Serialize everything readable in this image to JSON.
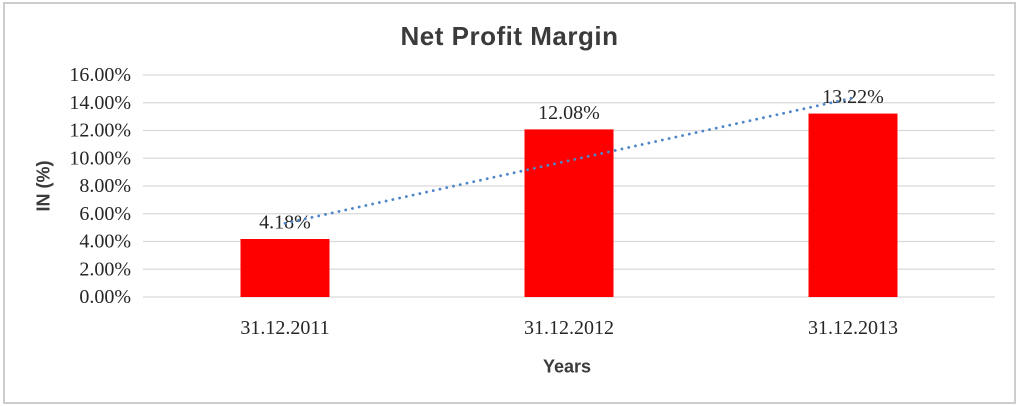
{
  "chart_data": {
    "type": "bar",
    "title": "Net Profit Margin",
    "xlabel": "Years",
    "ylabel": "IN (%)",
    "categories": [
      "31.12.2011",
      "31.12.2012",
      "31.12.2013"
    ],
    "values": [
      4.18,
      12.08,
      13.22
    ],
    "data_labels": [
      "4.18%",
      "12.08%",
      "13.22%"
    ],
    "ylim": [
      0,
      16
    ],
    "ytick_step": 2,
    "ytick_labels": [
      "0.00%",
      "2.00%",
      "4.00%",
      "6.00%",
      "8.00%",
      "10.00%",
      "12.00%",
      "14.00%",
      "16.00%"
    ],
    "grid": true,
    "legend": "none",
    "bar_color": "#ff0000",
    "gridline_color": "#d9d9d9",
    "title_color": "#3b3b3b",
    "label_color": "#262626",
    "trendline": {
      "type": "linear",
      "style": "dotted",
      "color": "#4e86c8"
    },
    "frame_border_color": "#cdcdcd"
  }
}
